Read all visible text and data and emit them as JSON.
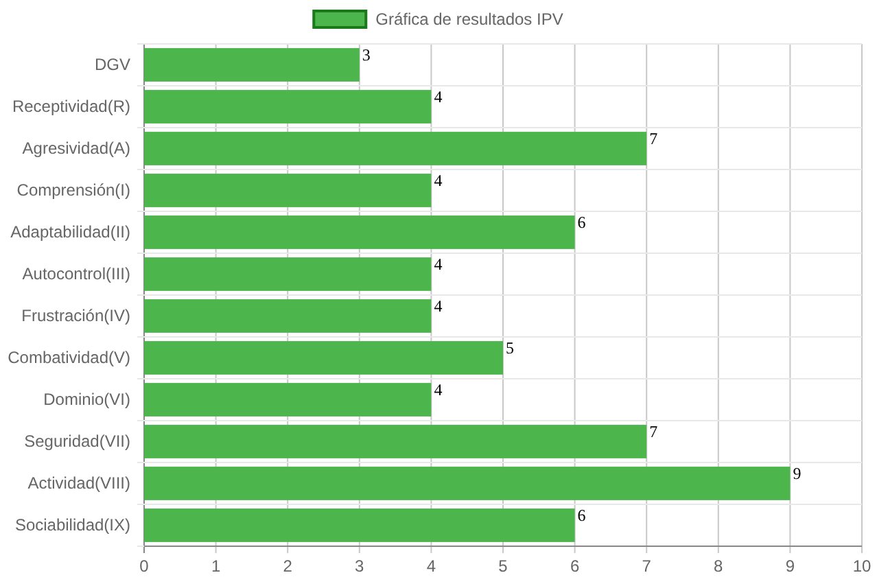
{
  "chart_data": {
    "type": "bar",
    "orientation": "horizontal",
    "categories": [
      "DGV",
      "Receptividad(R)",
      "Agresividad(A)",
      "Comprensión(I)",
      "Adaptabilidad(II)",
      "Autocontrol(III)",
      "Frustración(IV)",
      "Combatividad(V)",
      "Dominio(VI)",
      "Seguridad(VII)",
      "Actividad(VIII)",
      "Sociabilidad(IX)"
    ],
    "series": [
      {
        "name": "Gráfica de resultados IPV",
        "color": "#4cb54c",
        "values": [
          3,
          4,
          7,
          4,
          6,
          4,
          4,
          5,
          4,
          7,
          9,
          6
        ]
      }
    ],
    "xlim": [
      0,
      10
    ],
    "xticks": [
      0,
      1,
      2,
      3,
      4,
      5,
      6,
      7,
      8,
      9,
      10
    ],
    "grid": true,
    "legend": "top",
    "data_labels": true
  }
}
